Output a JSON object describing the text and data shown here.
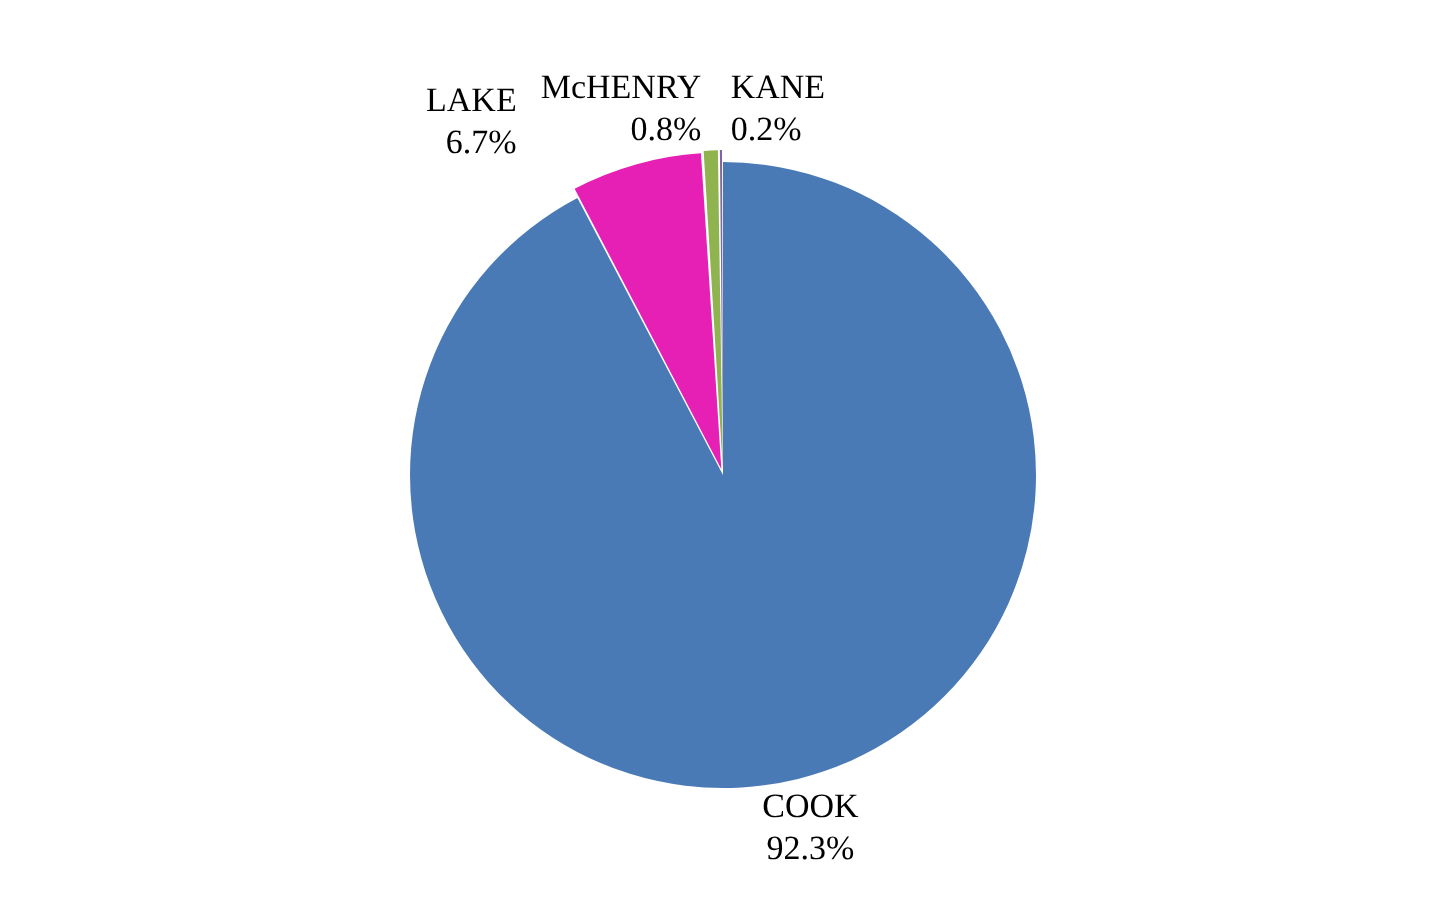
{
  "chart_data": {
    "type": "pie",
    "categories": [
      "COOK",
      "LAKE",
      "McHENRY",
      "KANE"
    ],
    "values": [
      92.3,
      6.7,
      0.8,
      0.2
    ],
    "colors": [
      "#4a7ab5",
      "#e61fb5",
      "#8fb34f",
      "#7f64a6"
    ],
    "value_labels": [
      "92.3%",
      "6.7%",
      "0.8%",
      "0.2%"
    ],
    "legend": false
  }
}
